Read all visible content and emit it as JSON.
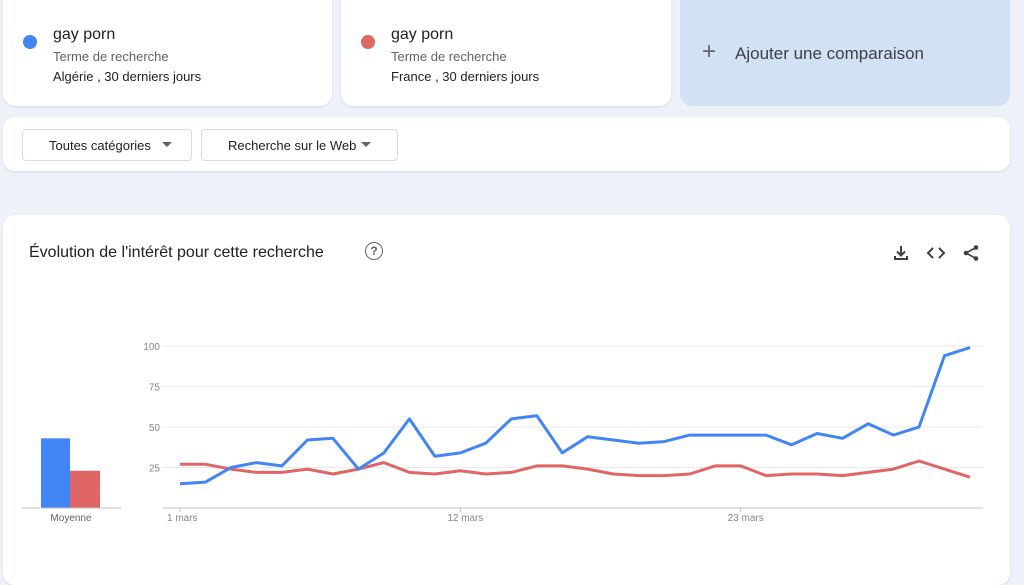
{
  "terms": [
    {
      "name": "gay porn",
      "type": "Terme de recherche",
      "location": "Algérie , 30 derniers jours",
      "color": "#4285f4"
    },
    {
      "name": "gay porn",
      "type": "Terme de recherche",
      "location": "France , 30 derniers jours",
      "color": "#e06666"
    }
  ],
  "add_comparison": {
    "label": "Ajouter une comparaison",
    "icon": "plus-icon"
  },
  "filters": {
    "category": "Toutes catégories",
    "search_type": "Recherche sur le Web"
  },
  "chart_section": {
    "title": "Évolution de l'intérêt pour cette recherche",
    "icons": [
      "help-icon",
      "download-icon",
      "embed-icon",
      "share-icon"
    ],
    "average_label": "Moyenne"
  },
  "chart_data": {
    "type": "line",
    "x_ticks": [
      "1 mars",
      "12 mars",
      "23 mars"
    ],
    "y_ticks": [
      "100",
      "75",
      "50",
      "25"
    ],
    "ylim": [
      0,
      100
    ],
    "series": [
      {
        "color": "#4285f4",
        "average": 43,
        "values": [
          15,
          16,
          25,
          28,
          26,
          42,
          43,
          24,
          34,
          55,
          32,
          34,
          40,
          55,
          57,
          34,
          44,
          42,
          40,
          41,
          45,
          45,
          45,
          45,
          39,
          46,
          43,
          52,
          45,
          50,
          94,
          99
        ]
      },
      {
        "color": "#e06666",
        "average": 23,
        "values": [
          27,
          27,
          24,
          22,
          22,
          24,
          21,
          24,
          28,
          22,
          21,
          23,
          21,
          22,
          26,
          26,
          24,
          21,
          20,
          20,
          21,
          26,
          26,
          20,
          21,
          21,
          20,
          22,
          24,
          29,
          24,
          19
        ]
      }
    ]
  }
}
